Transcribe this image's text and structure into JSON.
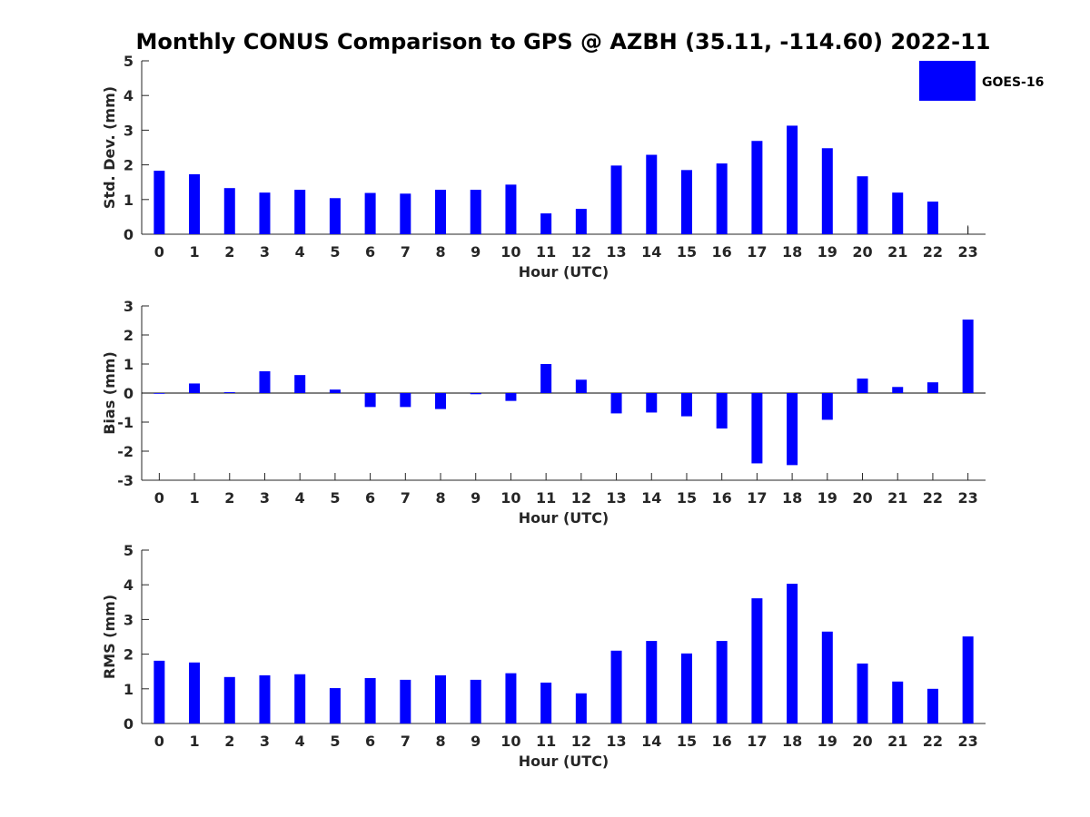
{
  "figure": {
    "title": "Monthly CONUS Comparison to GPS @ AZBH (35.11, -114.60) 2022-11",
    "legend_label": "GOES-16",
    "bar_color": "#0000ff",
    "axis_color": "#262626"
  },
  "chart_data": [
    {
      "type": "bar",
      "name": "std-dev",
      "title": "Monthly CONUS Comparison to GPS @ AZBH (35.11, -114.60) 2022-11",
      "xlabel": "Hour (UTC)",
      "ylabel": "Std. Dev. (mm)",
      "categories": [
        "0",
        "1",
        "2",
        "3",
        "4",
        "5",
        "6",
        "7",
        "8",
        "9",
        "10",
        "11",
        "12",
        "13",
        "14",
        "15",
        "16",
        "17",
        "18",
        "19",
        "20",
        "21",
        "22",
        "23"
      ],
      "series": [
        {
          "name": "GOES-16",
          "values": [
            1.83,
            1.73,
            1.33,
            1.2,
            1.28,
            1.04,
            1.19,
            1.17,
            1.28,
            1.28,
            1.43,
            0.6,
            0.73,
            1.98,
            2.29,
            1.85,
            2.04,
            2.69,
            3.13,
            2.48,
            1.67,
            1.2,
            0.94,
            0.25
          ]
        }
      ],
      "ylim": [
        0,
        5
      ],
      "yticks": [
        0,
        1,
        2,
        3,
        4,
        5
      ],
      "legend": "top-right"
    },
    {
      "type": "bar",
      "name": "bias",
      "xlabel": "Hour (UTC)",
      "ylabel": "Bias (mm)",
      "categories": [
        "0",
        "1",
        "2",
        "3",
        "4",
        "5",
        "6",
        "7",
        "8",
        "9",
        "10",
        "11",
        "12",
        "13",
        "14",
        "15",
        "16",
        "17",
        "18",
        "19",
        "20",
        "21",
        "22",
        "23"
      ],
      "series": [
        {
          "name": "GOES-16",
          "values": [
            0.0,
            0.33,
            0.03,
            0.75,
            0.62,
            0.12,
            -0.48,
            -0.48,
            -0.55,
            -0.04,
            -0.27,
            1.0,
            0.46,
            -0.7,
            -0.67,
            -0.8,
            -1.22,
            -2.42,
            -2.48,
            -0.92,
            0.5,
            0.21,
            0.37,
            2.53
          ]
        }
      ],
      "ylim": [
        -3,
        3
      ],
      "yticks": [
        -3,
        -2,
        -1,
        0,
        1,
        2,
        3
      ],
      "zero_line": true
    },
    {
      "type": "bar",
      "name": "rms",
      "xlabel": "Hour (UTC)",
      "ylabel": "RMS (mm)",
      "categories": [
        "0",
        "1",
        "2",
        "3",
        "4",
        "5",
        "6",
        "7",
        "8",
        "9",
        "10",
        "11",
        "12",
        "13",
        "14",
        "15",
        "16",
        "17",
        "18",
        "19",
        "20",
        "21",
        "22",
        "23"
      ],
      "series": [
        {
          "name": "GOES-16",
          "values": [
            1.81,
            1.76,
            1.34,
            1.39,
            1.42,
            1.02,
            1.31,
            1.26,
            1.39,
            1.26,
            1.45,
            1.18,
            0.87,
            2.1,
            2.38,
            2.02,
            2.38,
            3.61,
            4.03,
            2.65,
            1.73,
            1.21,
            1.0,
            2.51
          ]
        }
      ],
      "ylim": [
        0,
        5
      ],
      "yticks": [
        0,
        1,
        2,
        3,
        4,
        5
      ]
    }
  ]
}
